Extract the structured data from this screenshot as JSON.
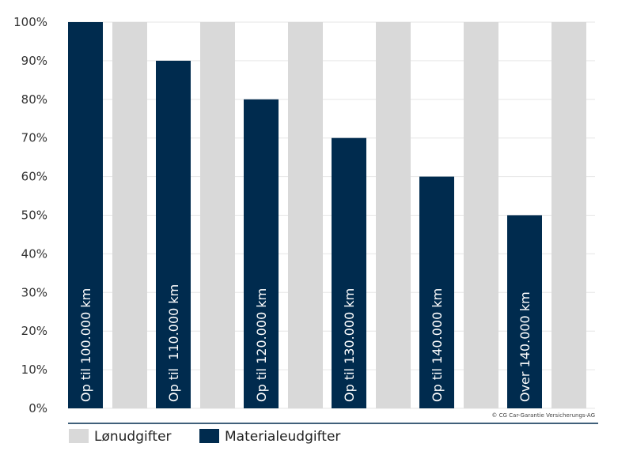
{
  "chart_data": {
    "type": "bar",
    "categories": [
      "Op til 100.000 km",
      "Op til  110.000 km",
      "Op til 120.000 km",
      "Op til 130.000 km",
      "Op til 140.000 km",
      "Over 140.000 km"
    ],
    "series": [
      {
        "name": "Materialeudgifter",
        "color": "#002b4e",
        "values": [
          100,
          90,
          80,
          70,
          60,
          50
        ]
      },
      {
        "name": "Lønudgifter",
        "color": "#d9d9d9",
        "values": [
          100,
          100,
          100,
          100,
          100,
          100
        ]
      }
    ],
    "yticks": [
      "0%",
      "10%",
      "20%",
      "30%",
      "40%",
      "50%",
      "60%",
      "70%",
      "80%",
      "90%",
      "100%"
    ],
    "ylim": [
      0,
      100
    ],
    "grid": true,
    "category_labels_inside_bars": true,
    "legend_position": "bottom-left"
  },
  "legend": [
    {
      "label": "Lønudgifter",
      "color": "#d9d9d9"
    },
    {
      "label": "Materialeudgifter",
      "color": "#002b4e"
    }
  ],
  "copyright": "© CG Car-Garantie Versicherungs-AG",
  "colors": {
    "grid": "#e6e6e6",
    "rule": "#002b4e"
  }
}
